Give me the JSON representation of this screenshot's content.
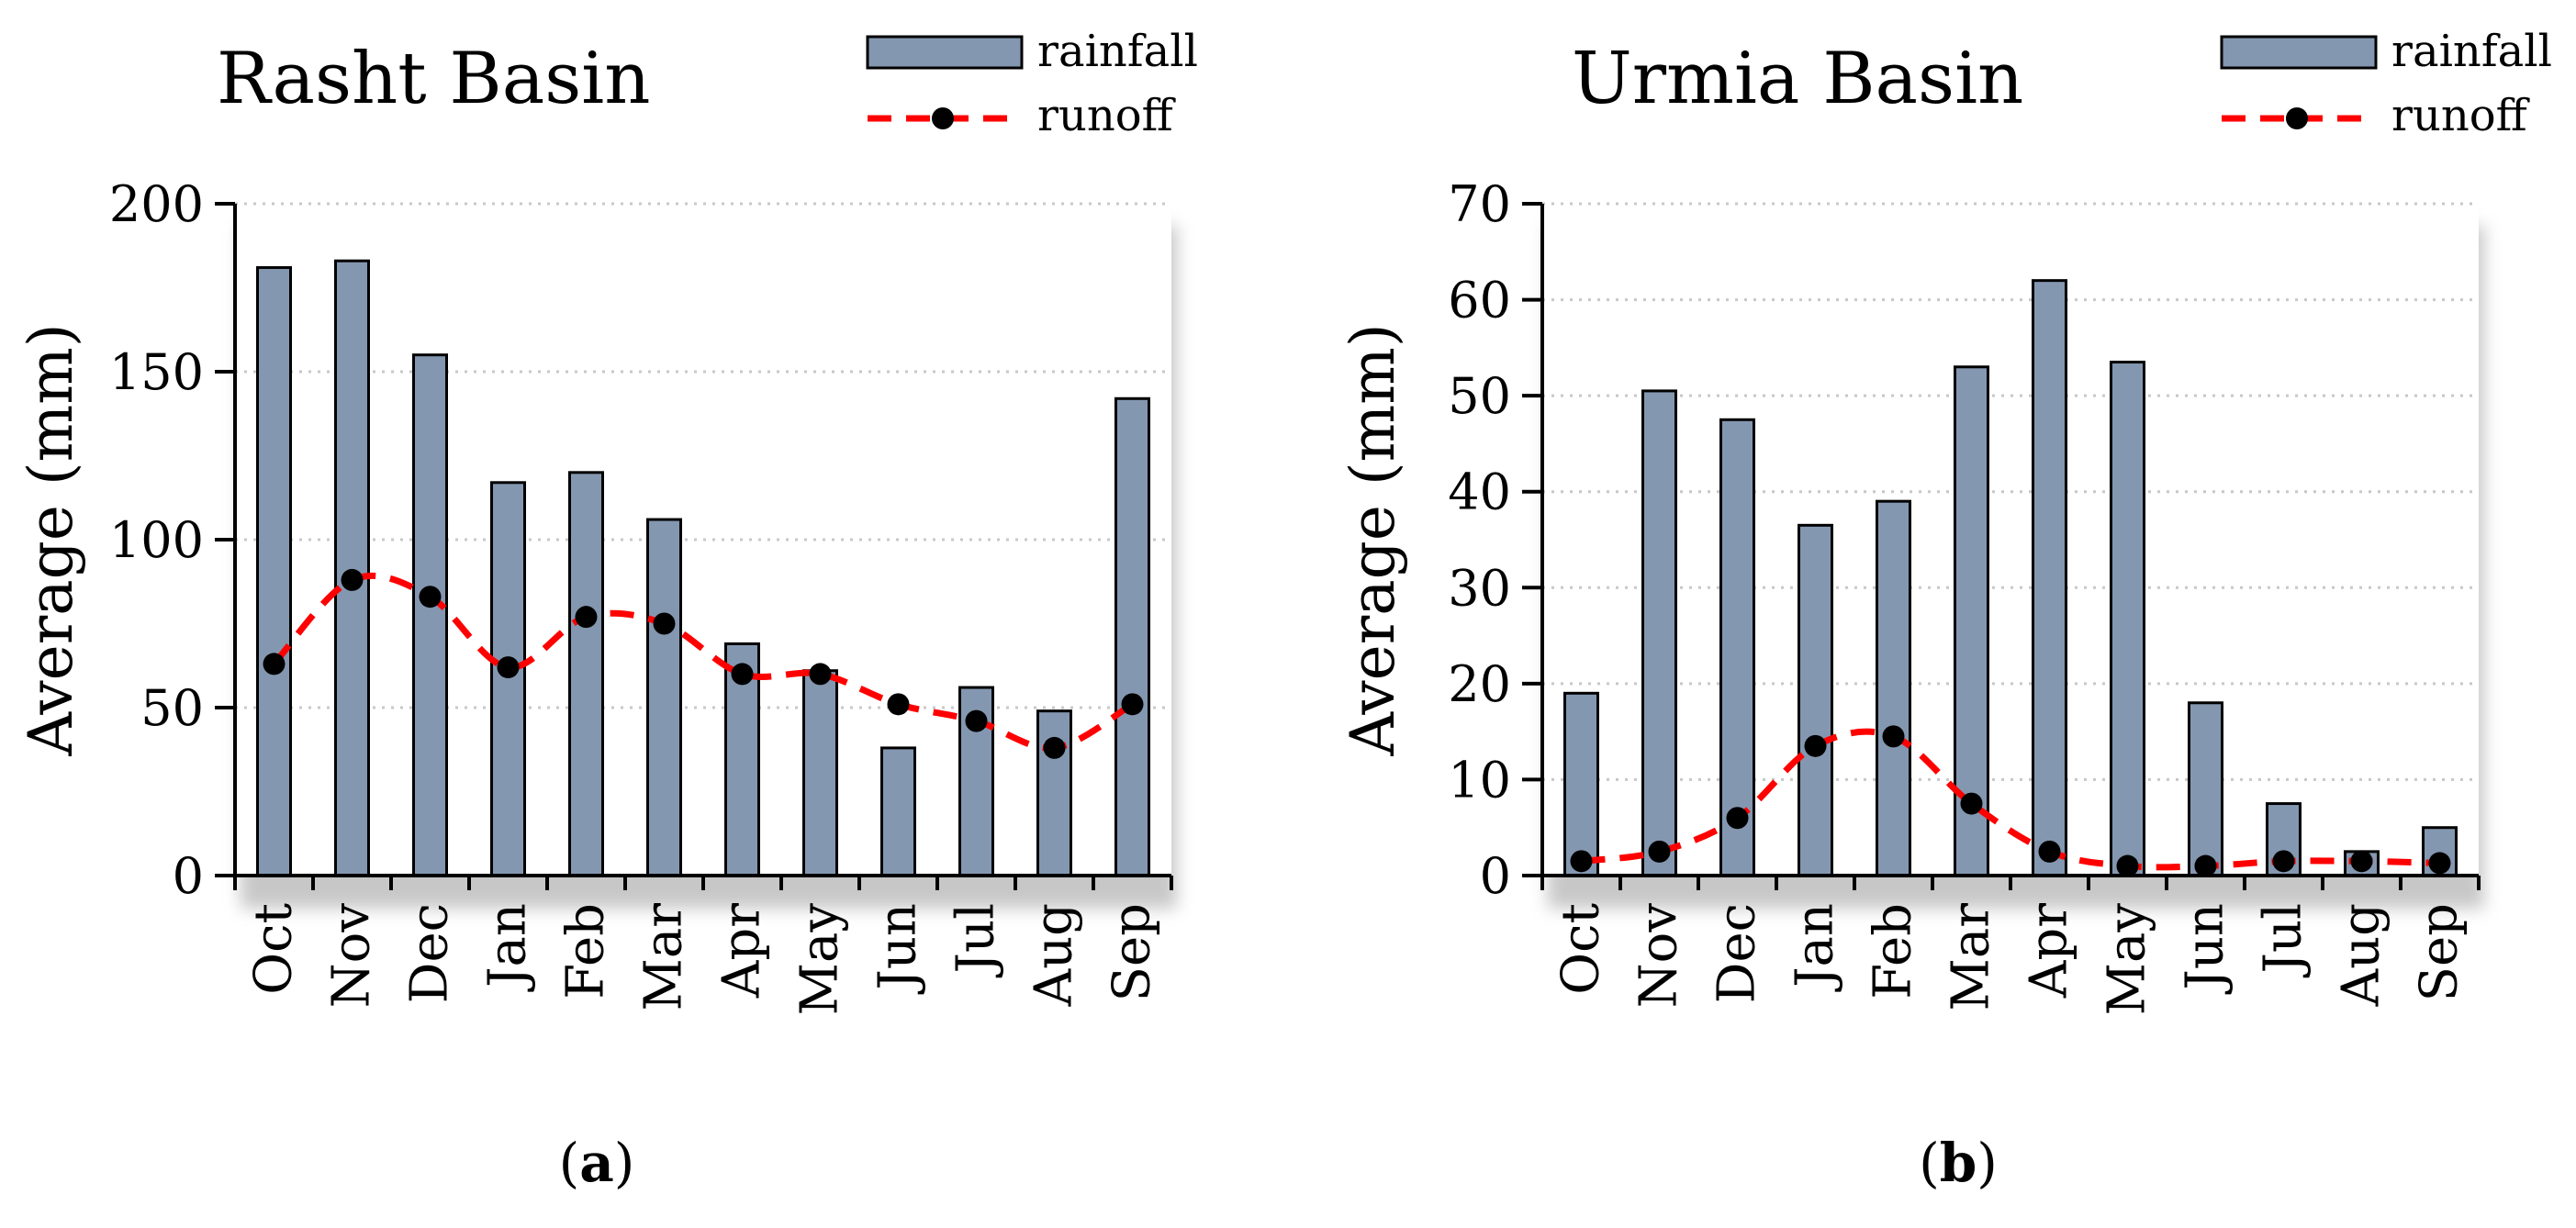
{
  "chart_data": [
    {
      "type": "bar",
      "title": "Rasht Basin",
      "ylabel": "Average (mm)",
      "xlabel": "",
      "ylim": [
        0,
        200
      ],
      "yticks": [
        0,
        50,
        100,
        150,
        200
      ],
      "grid": true,
      "legend_position": "top-right",
      "categories": [
        "Oct",
        "Nov",
        "Dec",
        "Jan",
        "Feb",
        "Mar",
        "Apr",
        "May",
        "Jun",
        "Jul",
        "Aug",
        "Sep"
      ],
      "series": [
        {
          "name": "rainfall",
          "kind": "bar",
          "color": "#8497B0",
          "values": [
            181,
            183,
            155,
            117,
            120,
            106,
            69,
            61,
            38,
            56,
            49,
            142
          ]
        },
        {
          "name": "runoff",
          "kind": "line",
          "color": "#FF0000",
          "marker_color": "#000000",
          "values": [
            63,
            88,
            83,
            62,
            77,
            75,
            60,
            60,
            51,
            46,
            38,
            51
          ]
        }
      ],
      "caption_open": "(",
      "caption_letter": "a",
      "caption_close": ")"
    },
    {
      "type": "bar",
      "title": "Urmia Basin",
      "ylabel": "Average (mm)",
      "xlabel": "",
      "ylim": [
        0,
        70
      ],
      "yticks": [
        0,
        10,
        20,
        30,
        40,
        50,
        60,
        70
      ],
      "grid": true,
      "legend_position": "top-right",
      "categories": [
        "Oct",
        "Nov",
        "Dec",
        "Jan",
        "Feb",
        "Mar",
        "Apr",
        "May",
        "Jun",
        "Jul",
        "Aug",
        "Sep"
      ],
      "series": [
        {
          "name": "rainfall",
          "kind": "bar",
          "color": "#8497B0",
          "values": [
            19,
            50.5,
            47.5,
            36.5,
            39,
            53,
            62,
            53.5,
            18,
            7.5,
            2.5,
            5
          ]
        },
        {
          "name": "runoff",
          "kind": "line",
          "color": "#FF0000",
          "marker_color": "#000000",
          "values": [
            1.5,
            2.5,
            6,
            13.5,
            14.5,
            7.5,
            2.5,
            1,
            1,
            1.5,
            1.5,
            1.3
          ]
        }
      ],
      "caption_open": "(",
      "caption_letter": "b",
      "caption_close": ")"
    }
  ]
}
